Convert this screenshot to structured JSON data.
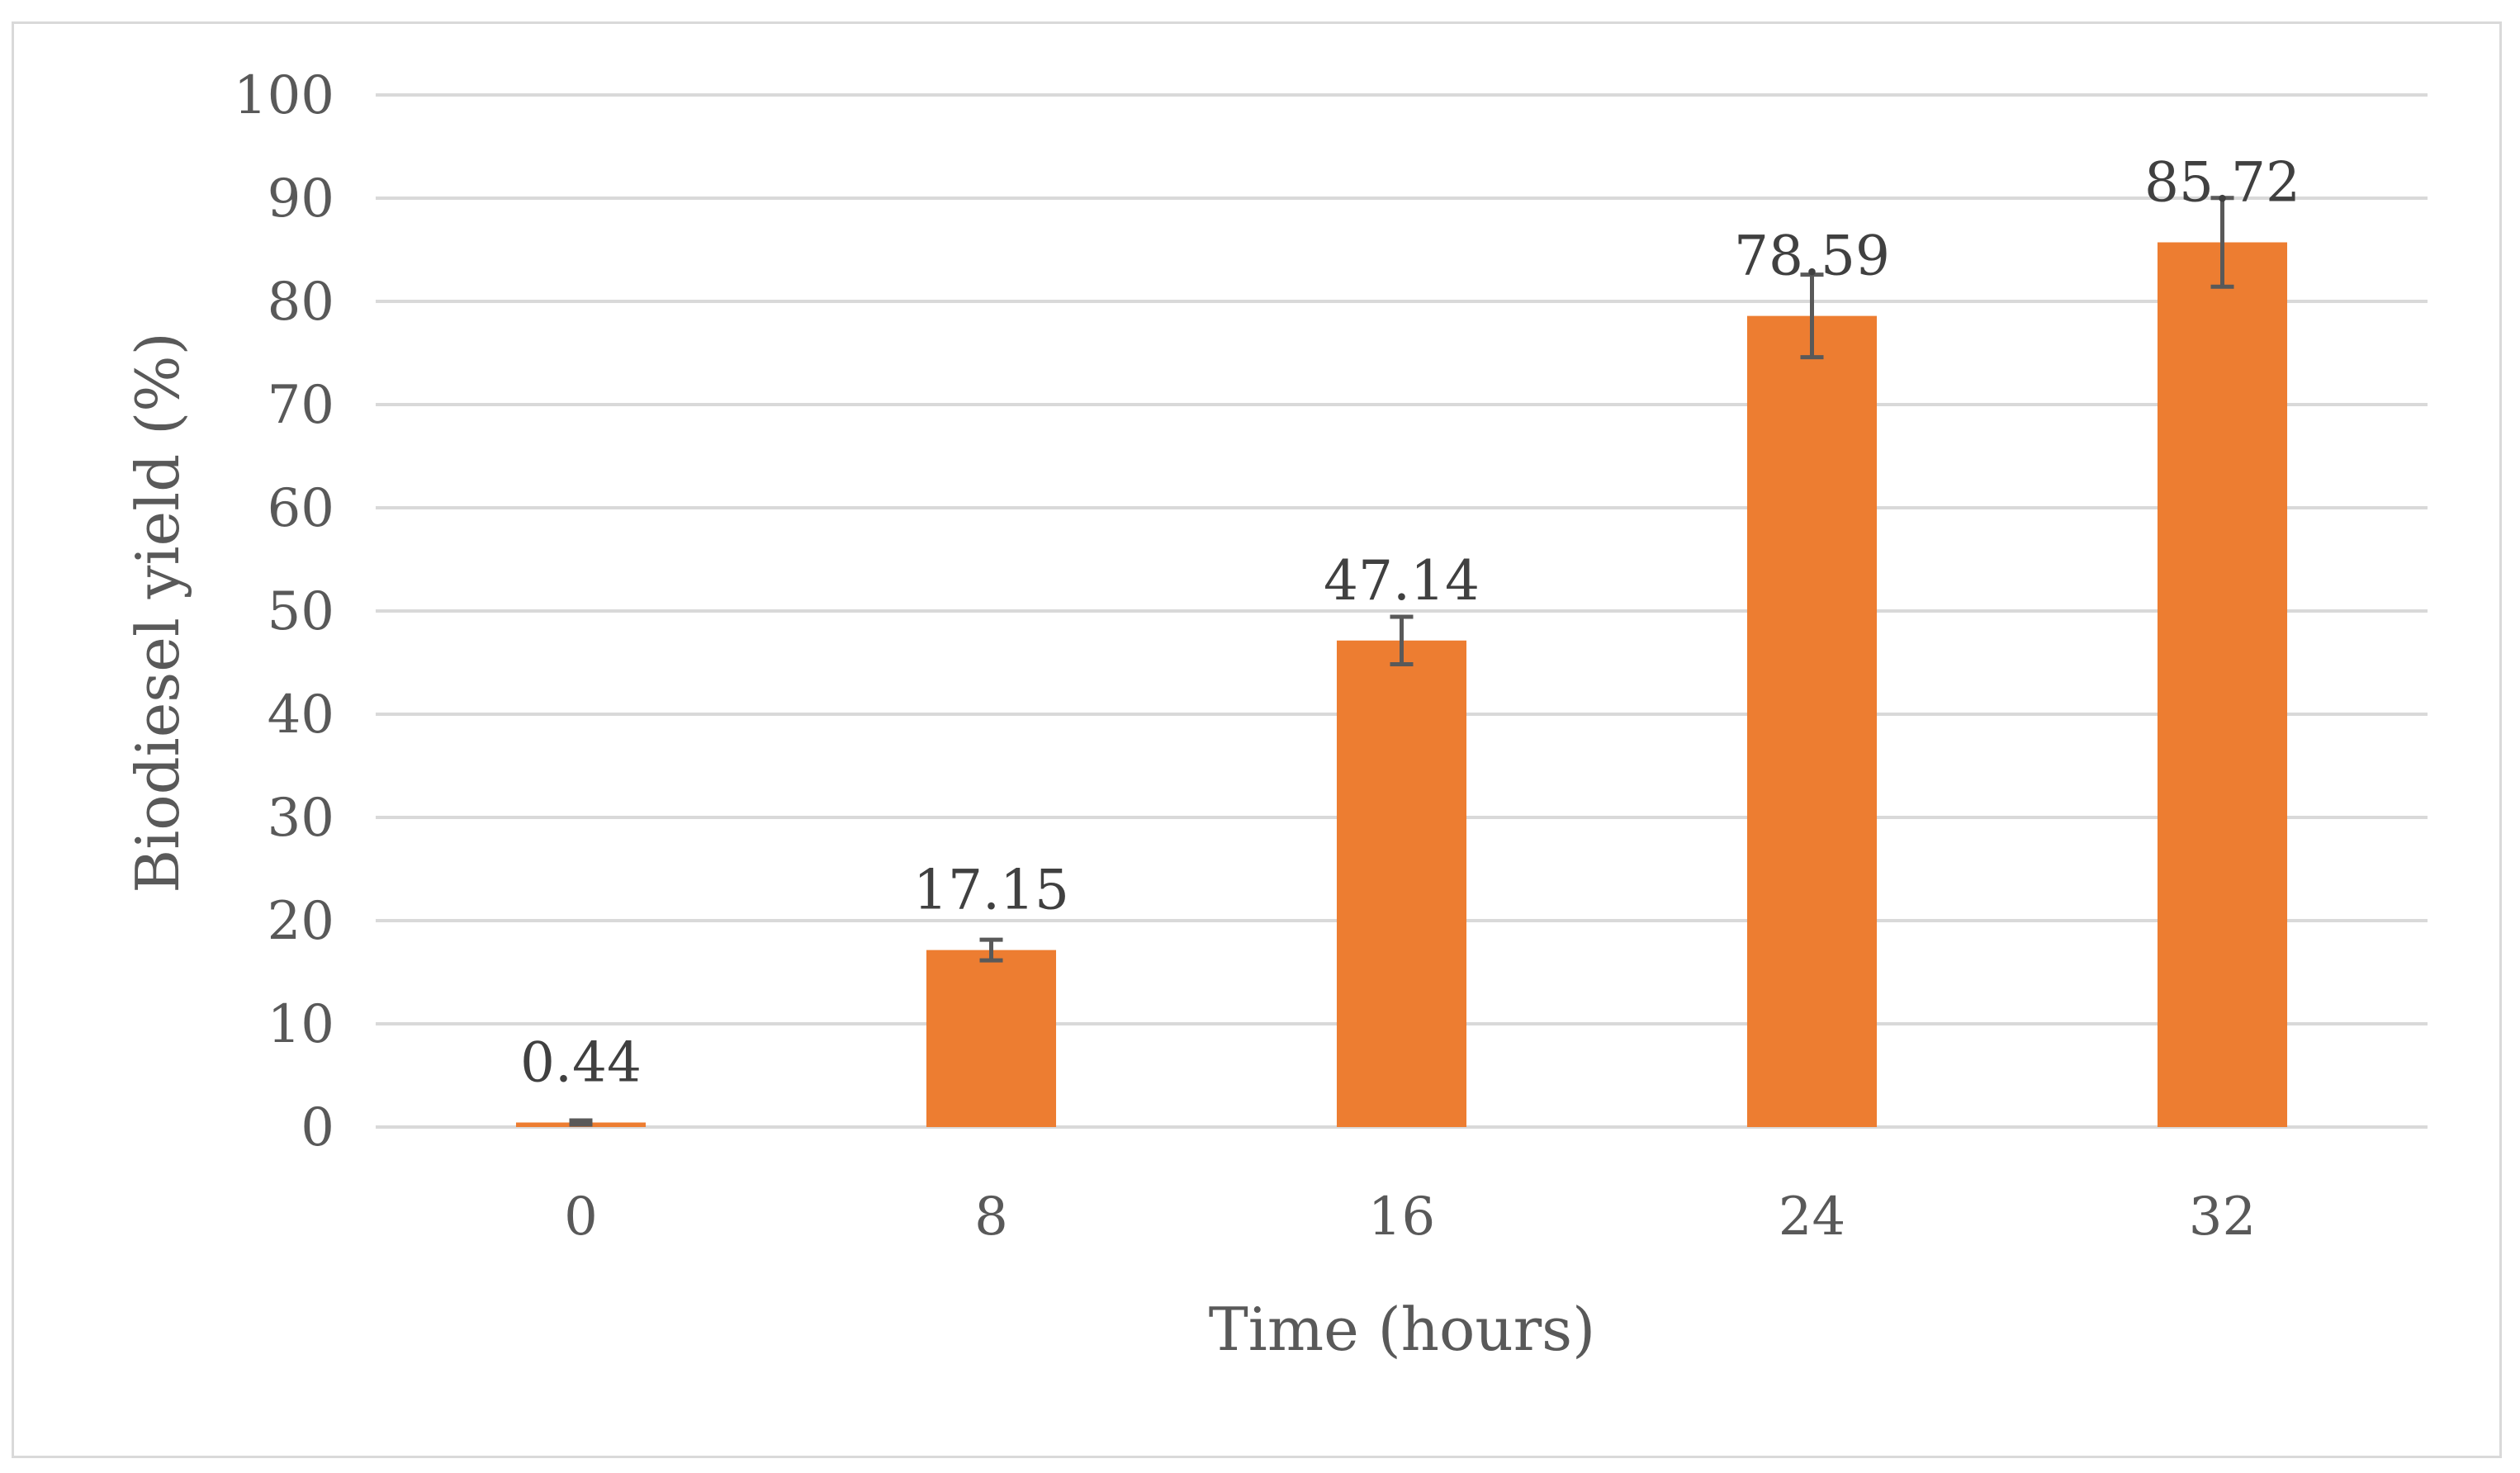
{
  "chart_data": {
    "type": "bar",
    "title": "",
    "xlabel": "Time (hours)",
    "ylabel": "Biodiesel yield (%)",
    "categories": [
      "0",
      "8",
      "16",
      "24",
      "32"
    ],
    "values": [
      0.44,
      17.15,
      47.14,
      78.59,
      85.72
    ],
    "data_labels": [
      "0.44",
      "17.15",
      "47.14",
      "78.59",
      "85.72"
    ],
    "error": [
      0.2,
      1.0,
      2.3,
      4.0,
      4.3
    ],
    "ylim": [
      0,
      100
    ],
    "yticks": [
      "0",
      "10",
      "20",
      "30",
      "40",
      "50",
      "60",
      "70",
      "80",
      "90",
      "100"
    ],
    "grid": true,
    "legend": false,
    "colors": {
      "bar": "#ed7d31",
      "grid": "#d9d9d9",
      "error_bar": "#595959"
    }
  }
}
